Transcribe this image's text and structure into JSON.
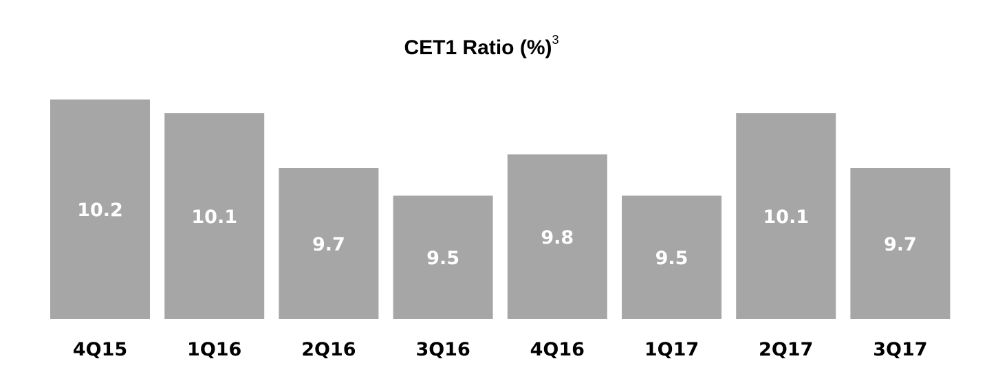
{
  "title": {
    "text": "CET1 Ratio (%)",
    "footnote": "3"
  },
  "colors": {
    "bar": "#a6a6a6",
    "bar_label": "#ffffff",
    "category_label": "#000000"
  },
  "chart_data": {
    "type": "bar",
    "title": "CET1 Ratio (%)",
    "title_footnote": "3",
    "categories": [
      "4Q15",
      "1Q16",
      "2Q16",
      "3Q16",
      "4Q16",
      "1Q17",
      "2Q17",
      "3Q17"
    ],
    "values": [
      10.2,
      10.1,
      9.7,
      9.5,
      9.8,
      9.5,
      10.1,
      9.7
    ],
    "value_labels": [
      "10.2",
      "10.1",
      "9.7",
      "9.5",
      "9.8",
      "9.5",
      "10.1",
      "9.7"
    ],
    "xlabel": "",
    "ylabel": "",
    "ylim": [
      8.6,
      10.3
    ],
    "grid": false,
    "legend": "none"
  }
}
